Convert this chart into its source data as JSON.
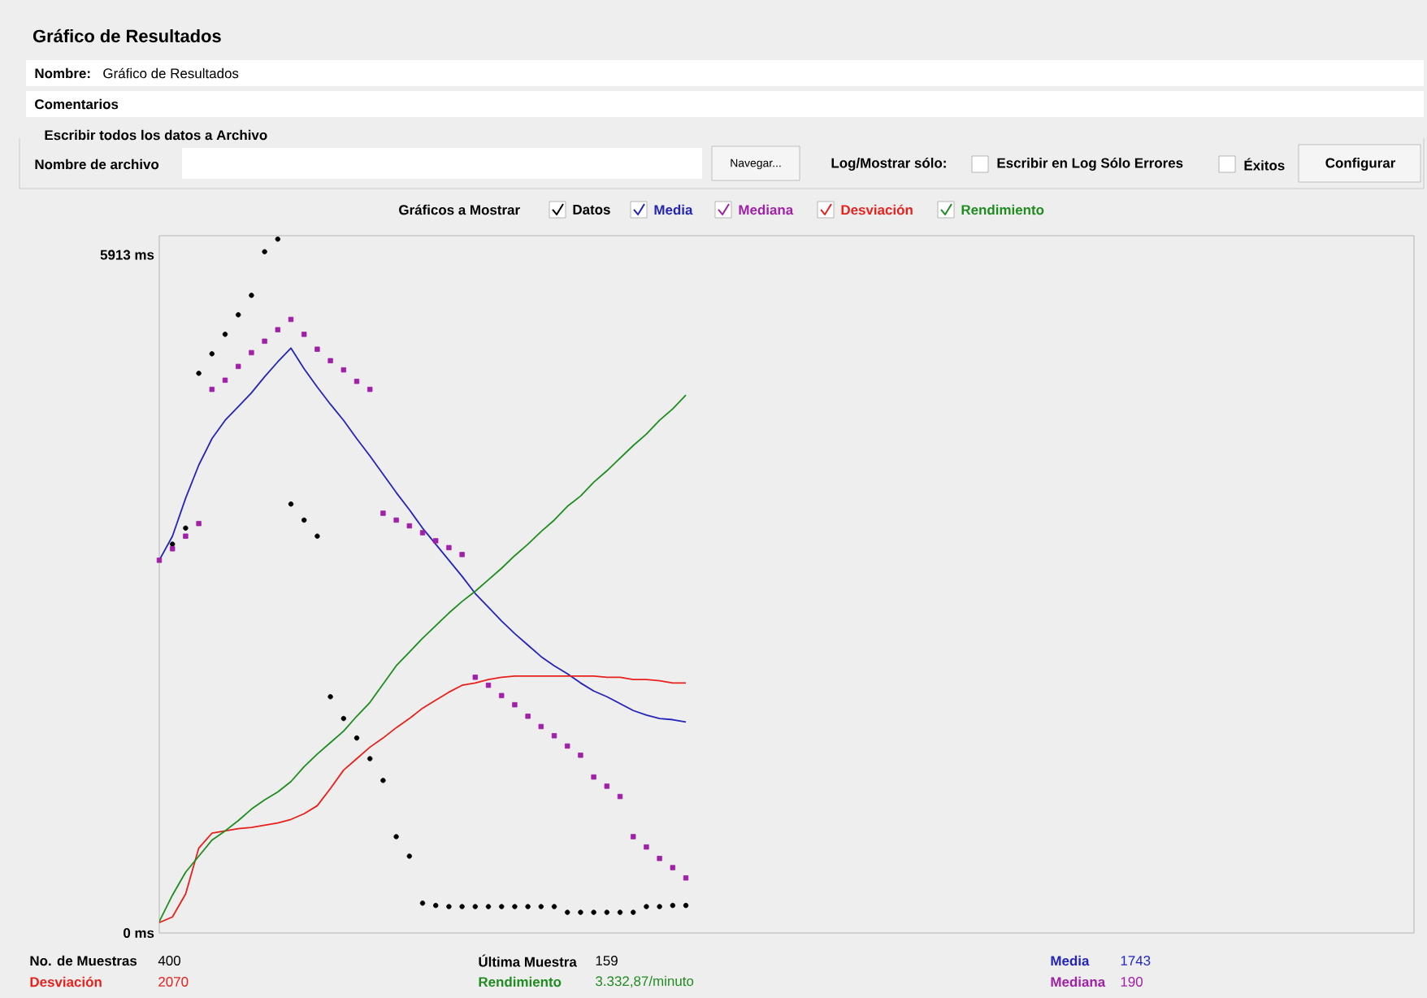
{
  "chart_data": {
    "type": "line",
    "title": "Gráfico de Resultados",
    "legend_title": "Gráficos a Mostrar",
    "legend": "top",
    "categories": [
      null,
      null,
      null,
      null,
      null,
      null,
      null,
      null,
      null,
      null,
      null,
      null,
      null,
      null,
      null,
      null,
      null,
      null,
      null,
      null,
      null,
      null,
      null,
      null,
      null,
      null,
      null,
      null,
      null,
      null,
      null,
      null,
      null,
      null,
      null,
      null,
      null,
      null,
      null,
      null,
      null
    ],
    "ylim": [
      0,
      6080
    ],
    "yticks": [
      {
        "value": 0,
        "label": "0 ms"
      },
      {
        "value": 5913,
        "label": "5913 ms"
      }
    ],
    "series": [
      {
        "name": "Datos",
        "type": "scatter",
        "marker": "circle",
        "color": "#000000",
        "values": [
          null,
          3390,
          3530,
          4880,
          5050,
          5220,
          5390,
          5560,
          5940,
          6050,
          3740,
          3600,
          3460,
          2060,
          1870,
          1700,
          1520,
          1330,
          840,
          670,
          260,
          240,
          230,
          230,
          230,
          230,
          230,
          230,
          230,
          230,
          230,
          180,
          180,
          180,
          180,
          180,
          180,
          230,
          230,
          240,
          240
        ]
      },
      {
        "name": "Media",
        "type": "line",
        "color": "#2424b8",
        "values": [
          3250,
          3460,
          3790,
          4080,
          4310,
          4470,
          4590,
          4710,
          4850,
          4980,
          5100,
          4920,
          4760,
          4610,
          4470,
          4310,
          4160,
          4000,
          3840,
          3690,
          3530,
          3390,
          3250,
          3110,
          2960,
          2840,
          2720,
          2610,
          2510,
          2410,
          2330,
          2260,
          2180,
          2110,
          2060,
          2000,
          1940,
          1900,
          1870,
          1860,
          1840
        ]
      },
      {
        "name": "Mediana",
        "type": "scatter",
        "marker": "square",
        "color": "#a020a8",
        "values": [
          3250,
          3350,
          3460,
          3570,
          4740,
          4820,
          4940,
          5060,
          5160,
          5260,
          5350,
          5220,
          5090,
          4990,
          4910,
          4810,
          4740,
          3660,
          3600,
          3550,
          3490,
          3420,
          3360,
          3300,
          2230,
          2160,
          2070,
          1990,
          1890,
          1800,
          1720,
          1630,
          1550,
          1360,
          1280,
          1190,
          840,
          750,
          650,
          570,
          480
        ]
      },
      {
        "name": "Desviación",
        "type": "line",
        "color": "#e8201c",
        "values": [
          90,
          140,
          340,
          740,
          870,
          890,
          910,
          920,
          940,
          960,
          990,
          1040,
          1110,
          1260,
          1420,
          1520,
          1620,
          1700,
          1790,
          1870,
          1960,
          2030,
          2100,
          2160,
          2180,
          2210,
          2230,
          2240,
          2240,
          2240,
          2240,
          2240,
          2240,
          2240,
          2230,
          2230,
          2210,
          2210,
          2200,
          2180,
          2180
        ]
      },
      {
        "name": "Rendimiento",
        "type": "line",
        "color": "#1e8c1e",
        "values": [
          100,
          330,
          530,
          670,
          810,
          890,
          980,
          1080,
          1160,
          1230,
          1320,
          1450,
          1560,
          1660,
          1760,
          1890,
          2010,
          2170,
          2330,
          2450,
          2570,
          2680,
          2790,
          2890,
          2980,
          3080,
          3180,
          3290,
          3390,
          3500,
          3600,
          3720,
          3810,
          3930,
          4030,
          4140,
          4250,
          4350,
          4470,
          4570,
          4690
        ]
      }
    ],
    "annotations": [
      "Nombre:",
      "Gráfico de Resultados",
      "Comentarios",
      "Escribir todos los datos a Archivo",
      "Nombre de archivo",
      "Navegar...",
      "Log/Mostrar sólo:",
      "Escribir en Log Sólo Errores",
      "Éxitos",
      "Configurar",
      "No. de Muestras",
      "400",
      "Última Muestra",
      "159",
      "Media",
      "1743",
      "Desviación",
      "2070",
      "Rendimiento",
      "3.332,87/minuto",
      "Mediana",
      "190"
    ]
  }
}
